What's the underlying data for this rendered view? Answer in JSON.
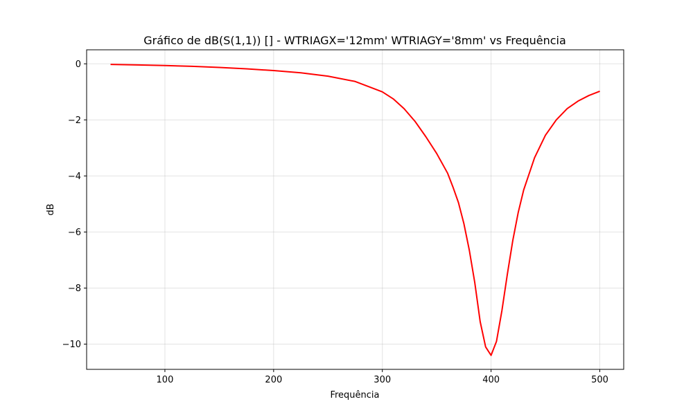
{
  "chart_data": {
    "type": "line",
    "title": "Gráfico de dB(S(1,1)) [] - WTRIAGX='12mm' WTRIAGY='8mm' vs Frequência",
    "xlabel": "Frequência",
    "ylabel": "dB",
    "xlim": [
      28,
      522
    ],
    "ylim": [
      -10.9,
      0.5
    ],
    "xticks": [
      100,
      200,
      300,
      400,
      500
    ],
    "xtick_labels": [
      "100",
      "200",
      "300",
      "400",
      "500"
    ],
    "yticks": [
      0,
      -2,
      -4,
      -6,
      -8,
      -10
    ],
    "ytick_labels": [
      "0",
      "−2",
      "−4",
      "−6",
      "−8",
      "−10"
    ],
    "grid": true,
    "legend": "none",
    "series": [
      {
        "color": "#ff0000",
        "x": [
          50,
          75,
          100,
          125,
          150,
          175,
          200,
          225,
          250,
          275,
          300,
          310,
          320,
          330,
          340,
          350,
          360,
          365,
          370,
          375,
          380,
          385,
          390,
          395,
          400,
          405,
          410,
          415,
          420,
          425,
          430,
          440,
          450,
          460,
          470,
          480,
          490,
          500
        ],
        "y": [
          -0.02,
          -0.04,
          -0.06,
          -0.09,
          -0.13,
          -0.18,
          -0.24,
          -0.32,
          -0.44,
          -0.63,
          -1.0,
          -1.25,
          -1.6,
          -2.05,
          -2.6,
          -3.2,
          -3.9,
          -4.4,
          -4.95,
          -5.7,
          -6.65,
          -7.8,
          -9.2,
          -10.1,
          -10.4,
          -9.9,
          -8.8,
          -7.5,
          -6.3,
          -5.3,
          -4.5,
          -3.35,
          -2.55,
          -2.0,
          -1.6,
          -1.33,
          -1.13,
          -0.98
        ]
      }
    ]
  }
}
